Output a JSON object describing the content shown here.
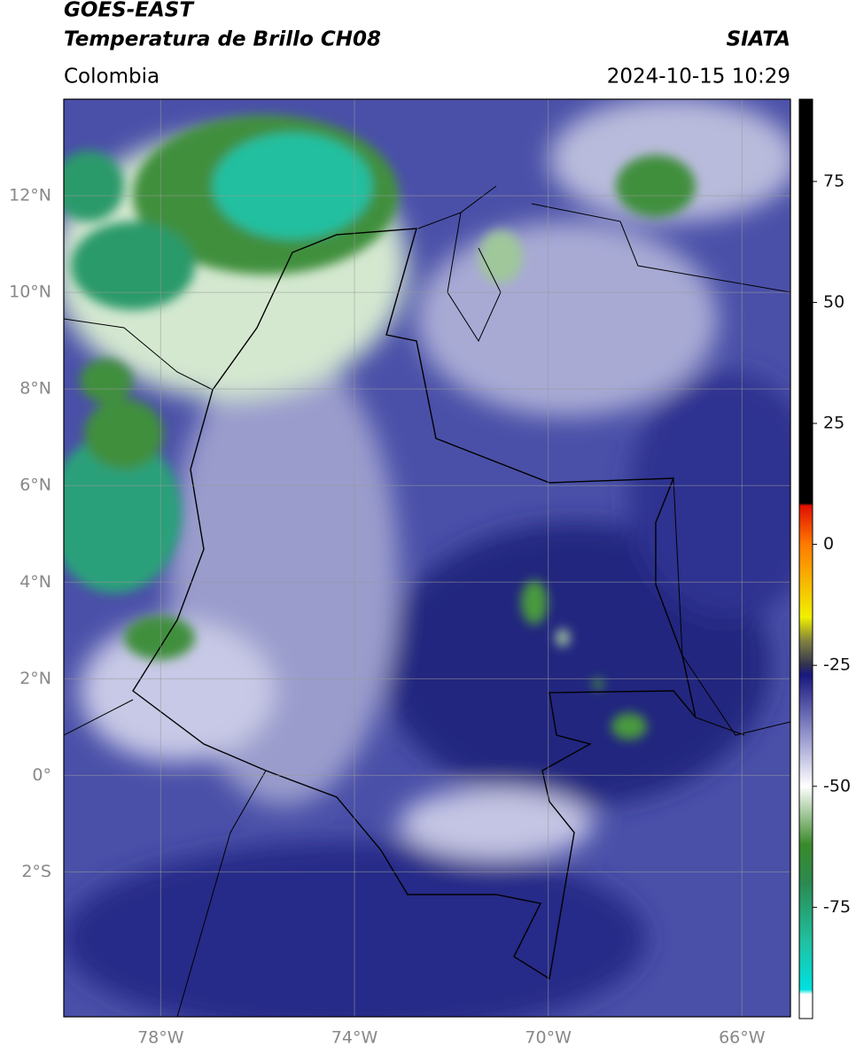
{
  "header": {
    "title": "GOES-EAST",
    "subtitle": "Temperatura de Brillo CH08",
    "source": "SIATA",
    "region": "Colombia",
    "datetime": "2024-10-15 10:29"
  },
  "map": {
    "xlim": [
      -80,
      -65
    ],
    "ylim": [
      -5,
      14
    ],
    "xticks": [
      {
        "value": -78,
        "label": "78°W"
      },
      {
        "value": -74,
        "label": "74°W"
      },
      {
        "value": -70,
        "label": "70°W"
      },
      {
        "value": -66,
        "label": "66°W"
      }
    ],
    "yticks": [
      {
        "value": 12,
        "label": "12°N"
      },
      {
        "value": 10,
        "label": "10°N"
      },
      {
        "value": 8,
        "label": "8°N"
      },
      {
        "value": 6,
        "label": "6°N"
      },
      {
        "value": 4,
        "label": "4°N"
      },
      {
        "value": 2,
        "label": "2°N"
      },
      {
        "value": 0,
        "label": "0°"
      },
      {
        "value": -2,
        "label": "2°S"
      }
    ],
    "grid": true
  },
  "colorbar": {
    "lim": [
      -98,
      92
    ],
    "ticks": [
      75,
      50,
      25,
      0,
      -25,
      -50,
      -75
    ],
    "stops": [
      {
        "value": 92,
        "color": "#000000"
      },
      {
        "value": 8.5,
        "color": "#000000"
      },
      {
        "value": 8,
        "color": "#e01000"
      },
      {
        "value": 0,
        "color": "#ff7a00"
      },
      {
        "value": -15,
        "color": "#f0f000"
      },
      {
        "value": -20,
        "color": "#808040"
      },
      {
        "value": -25,
        "color": "#303050"
      },
      {
        "value": -27,
        "color": "#181880"
      },
      {
        "value": -40,
        "color": "#9a9ad0"
      },
      {
        "value": -50,
        "color": "#ffffff"
      },
      {
        "value": -62,
        "color": "#3a8a2a"
      },
      {
        "value": -70,
        "color": "#2a8a50"
      },
      {
        "value": -82,
        "color": "#20c0a0"
      },
      {
        "value": -92,
        "color": "#00e0e0"
      },
      {
        "value": -93,
        "color": "#ffffff"
      },
      {
        "value": -98,
        "color": "#ffffff"
      }
    ]
  }
}
